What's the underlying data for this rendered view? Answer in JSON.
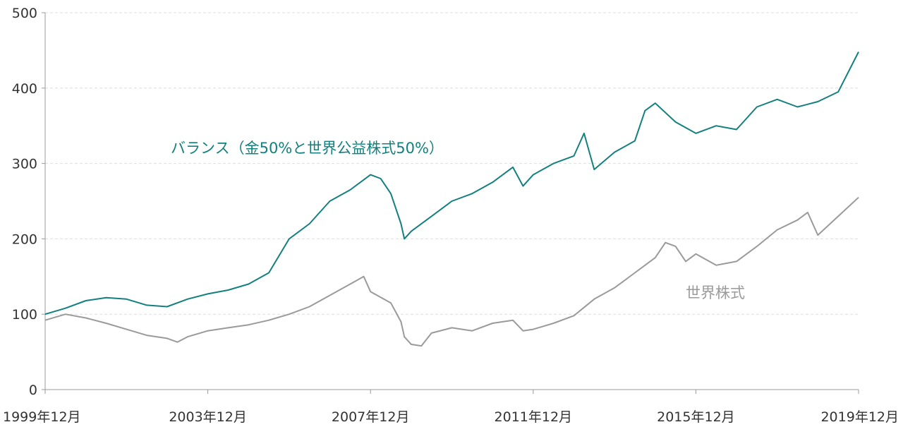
{
  "chart_data": {
    "type": "line",
    "title": "",
    "xlabel": "",
    "ylabel": "",
    "xlim": [
      "1999-12",
      "2019-12"
    ],
    "ylim": [
      0,
      500
    ],
    "grid": true,
    "y_ticks": [
      "0",
      "100",
      "200",
      "300",
      "400",
      "500"
    ],
    "x_ticks": [
      "1999年12月",
      "2003年12月",
      "2007年12月",
      "2011年12月",
      "2015年12月",
      "2019年12月"
    ],
    "colors": {
      "balanced": "#13807d",
      "world_equity": "#9a9a9a",
      "grid": "#dddddd",
      "axis": "#999999"
    },
    "series": [
      {
        "name": "バランス（金50%と世界公益株式50%）",
        "x": [
          "1999-12",
          "2000-06",
          "2000-12",
          "2001-06",
          "2001-12",
          "2002-06",
          "2002-12",
          "2003-06",
          "2003-12",
          "2004-06",
          "2004-12",
          "2005-06",
          "2005-12",
          "2006-06",
          "2006-12",
          "2007-06",
          "2007-12",
          "2008-03",
          "2008-06",
          "2008-09",
          "2008-10",
          "2008-12",
          "2009-06",
          "2009-12",
          "2010-06",
          "2010-12",
          "2011-06",
          "2011-09",
          "2011-12",
          "2012-06",
          "2012-12",
          "2013-03",
          "2013-06",
          "2013-12",
          "2014-06",
          "2014-09",
          "2014-12",
          "2015-06",
          "2015-12",
          "2016-06",
          "2016-12",
          "2017-06",
          "2017-12",
          "2018-06",
          "2018-12",
          "2019-06",
          "2019-12"
        ],
        "y": [
          100,
          108,
          118,
          122,
          120,
          112,
          110,
          120,
          127,
          132,
          140,
          155,
          200,
          220,
          250,
          265,
          285,
          280,
          260,
          220,
          200,
          210,
          230,
          250,
          260,
          275,
          295,
          270,
          285,
          300,
          310,
          340,
          292,
          315,
          330,
          370,
          380,
          355,
          340,
          350,
          345,
          375,
          385,
          375,
          382,
          395,
          448
        ]
      },
      {
        "name": "世界株式",
        "x": [
          "1999-12",
          "2000-06",
          "2000-12",
          "2001-06",
          "2001-12",
          "2002-06",
          "2002-12",
          "2003-03",
          "2003-06",
          "2003-12",
          "2004-06",
          "2004-12",
          "2005-06",
          "2005-12",
          "2006-06",
          "2006-12",
          "2007-06",
          "2007-10",
          "2007-12",
          "2008-06",
          "2008-09",
          "2008-10",
          "2008-12",
          "2009-03",
          "2009-06",
          "2009-12",
          "2010-06",
          "2010-12",
          "2011-06",
          "2011-09",
          "2011-12",
          "2012-06",
          "2012-12",
          "2013-06",
          "2013-12",
          "2014-06",
          "2014-12",
          "2015-03",
          "2015-06",
          "2015-09",
          "2015-12",
          "2016-06",
          "2016-12",
          "2017-06",
          "2017-12",
          "2018-06",
          "2018-09",
          "2018-12",
          "2019-06",
          "2019-12"
        ],
        "y": [
          92,
          100,
          95,
          88,
          80,
          72,
          68,
          63,
          70,
          78,
          82,
          86,
          92,
          100,
          110,
          125,
          140,
          150,
          130,
          115,
          90,
          70,
          60,
          58,
          75,
          82,
          78,
          88,
          92,
          78,
          80,
          88,
          98,
          120,
          135,
          155,
          175,
          195,
          190,
          170,
          180,
          165,
          170,
          190,
          212,
          225,
          235,
          205,
          230,
          255
        ]
      }
    ],
    "labels": {
      "balanced": "バランス（金50%と世界公益株式50%）",
      "world_equity": "世界株式"
    }
  }
}
